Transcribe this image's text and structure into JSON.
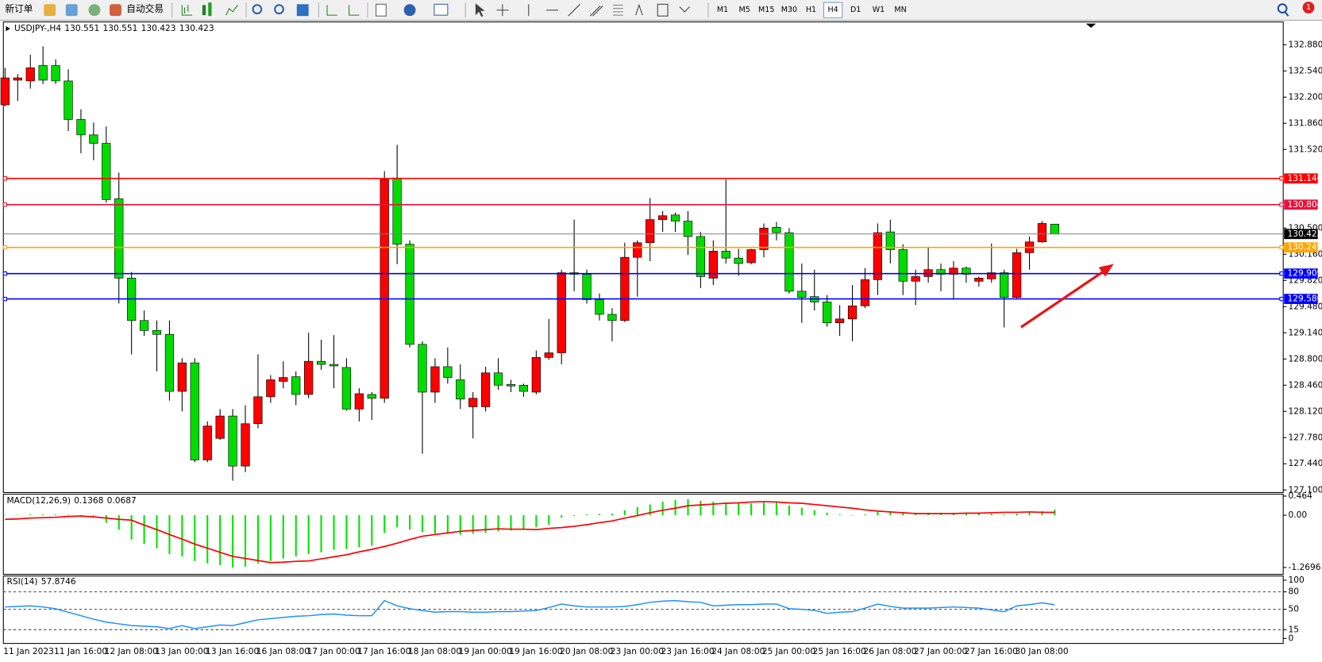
{
  "toolbar": {
    "new_order": "新订单",
    "auto_trading": "自动交易",
    "timeframes": [
      "M1",
      "M5",
      "M15",
      "M30",
      "H1",
      "H4",
      "D1",
      "W1",
      "MN"
    ],
    "notifications": 1
  },
  "chart_data": [
    {
      "type": "candlestick",
      "title": "USDJPY-,H4",
      "up_color": "#ff0000",
      "down_color": "#00dc00",
      "categories": [
        "11 Jan 2023",
        null,
        null,
        null,
        "11 Jan 16:00",
        null,
        null,
        null,
        "12 Jan 08:00",
        null,
        null,
        null,
        "13 Jan 00:00",
        null,
        null,
        null,
        "13 Jan 16:00",
        null,
        null,
        null,
        "16 Jan 08:00",
        null,
        null,
        null,
        "17 Jan 00:00",
        null,
        null,
        null,
        "17 Jan 16:00",
        null,
        null,
        null,
        "18 Jan 08:00",
        null,
        null,
        null,
        "19 Jan 00:00",
        null,
        null,
        null,
        "19 Jan 16:00",
        null,
        null,
        null,
        "20 Jan 08:00",
        null,
        null,
        null,
        "23 Jan 00:00",
        null,
        null,
        null,
        "23 Jan 16:00",
        null,
        null,
        null,
        "24 Jan 08:00",
        null,
        null,
        null,
        "25 Jan 00:00",
        null,
        null,
        null,
        "25 Jan 16:00",
        null,
        null,
        null,
        "26 Jan 08:00",
        null,
        null,
        null,
        "27 Jan 00:00",
        null,
        null,
        null,
        "27 Jan 16:00",
        null,
        null,
        null,
        "30 Jan 08:00",
        null,
        null,
        null
      ],
      "open": [
        132.1,
        132.42,
        132.41,
        132.61,
        132.61,
        132.41,
        131.91,
        131.71,
        131.6,
        130.88,
        129.85,
        129.3,
        129.17,
        129.12,
        128.38,
        128.75,
        127.49,
        127.77,
        128.06,
        127.41,
        127.96,
        128.31,
        128.51,
        128.57,
        128.34,
        128.77,
        128.73,
        128.69,
        128.15,
        128.34,
        128.29,
        131.15,
        130.29,
        128.99,
        128.37,
        128.7,
        128.53,
        128.18,
        128.18,
        128.62,
        128.47,
        128.46,
        128.37,
        128.82,
        128.88,
        129.92,
        129.9,
        129.57,
        129.38,
        129.3,
        130.12,
        130.31,
        130.61,
        130.67,
        130.59,
        130.39,
        129.85,
        130.2,
        130.11,
        130.05,
        130.22,
        130.51,
        130.44,
        129.68,
        129.61,
        129.54,
        129.27,
        129.32,
        129.49,
        129.83,
        130.45,
        130.22,
        129.81,
        129.87,
        129.96,
        129.9,
        129.98,
        129.81,
        129.84,
        129.92,
        129.6,
        130.18,
        130.32,
        130.551
      ],
      "high": [
        132.58,
        132.5,
        132.75,
        132.86,
        132.69,
        132.56,
        132.04,
        131.87,
        131.82,
        131.22,
        129.93,
        129.43,
        129.3,
        129.3,
        128.81,
        128.81,
        127.99,
        128.15,
        128.15,
        128.2,
        128.86,
        128.59,
        128.77,
        128.64,
        129.14,
        129.05,
        129.11,
        128.81,
        128.42,
        128.37,
        131.24,
        131.58,
        130.34,
        129.03,
        128.81,
        128.95,
        128.73,
        128.37,
        128.7,
        128.81,
        128.53,
        128.48,
        128.91,
        129.32,
        129.96,
        130.61,
        129.96,
        129.65,
        129.46,
        130.31,
        130.34,
        130.89,
        130.72,
        130.7,
        130.72,
        130.45,
        130.34,
        131.13,
        130.23,
        130.23,
        130.56,
        130.58,
        130.5,
        130.04,
        129.96,
        129.63,
        129.5,
        129.76,
        129.98,
        130.56,
        130.61,
        130.29,
        129.96,
        130.25,
        130.04,
        130.07,
        130.0,
        129.87,
        130.3,
        129.96,
        130.23,
        130.39,
        130.59,
        130.551
      ],
      "low": [
        132.08,
        132.15,
        132.31,
        132.37,
        132.37,
        131.76,
        131.47,
        131.38,
        130.83,
        129.52,
        128.86,
        129.1,
        128.64,
        128.26,
        128.12,
        127.46,
        127.46,
        127.75,
        127.22,
        127.33,
        127.9,
        128.23,
        128.42,
        128.2,
        128.29,
        128.66,
        128.42,
        128.13,
        127.99,
        128.01,
        128.23,
        130.03,
        128.95,
        127.57,
        128.23,
        128.48,
        128.15,
        127.77,
        128.12,
        128.4,
        128.37,
        128.31,
        128.34,
        128.79,
        128.73,
        129.68,
        129.52,
        129.3,
        129.03,
        129.28,
        129.61,
        130.07,
        130.45,
        130.45,
        130.15,
        129.72,
        129.76,
        130.04,
        129.88,
        130.03,
        130.12,
        130.34,
        129.65,
        129.27,
        129.43,
        129.22,
        129.1,
        129.03,
        129.46,
        129.63,
        130.04,
        129.63,
        129.5,
        129.79,
        129.68,
        129.57,
        129.79,
        129.74,
        129.79,
        129.21,
        129.58,
        129.96,
        130.31,
        130.423
      ],
      "close": [
        132.45,
        132.45,
        132.58,
        132.42,
        132.41,
        131.91,
        131.71,
        131.6,
        130.87,
        129.85,
        129.3,
        129.17,
        129.12,
        128.38,
        128.75,
        127.49,
        127.93,
        128.06,
        127.41,
        127.96,
        128.31,
        128.53,
        128.56,
        128.34,
        128.77,
        128.73,
        128.71,
        128.15,
        128.35,
        128.29,
        131.13,
        130.29,
        128.99,
        128.37,
        128.7,
        128.56,
        128.28,
        128.29,
        128.62,
        128.46,
        128.45,
        128.38,
        128.82,
        128.88,
        129.92,
        129.9,
        129.57,
        129.38,
        129.3,
        130.12,
        130.31,
        130.61,
        130.66,
        130.59,
        130.39,
        129.87,
        130.2,
        130.11,
        130.04,
        130.22,
        130.5,
        130.44,
        129.68,
        129.6,
        129.54,
        129.27,
        129.32,
        129.49,
        129.83,
        130.44,
        130.22,
        129.81,
        129.87,
        129.96,
        129.9,
        129.98,
        129.9,
        129.85,
        129.92,
        129.6,
        130.18,
        130.32,
        130.56,
        130.423
      ],
      "ylim": [
        127.078,
        133.165
      ],
      "yticks": [
        {
          "value": 132.88,
          "label": "132.880"
        },
        {
          "value": 132.54,
          "label": "132.540"
        },
        {
          "value": 132.2,
          "label": "132.200"
        },
        {
          "value": 131.86,
          "label": "131.860"
        },
        {
          "value": 131.52,
          "label": "131.520"
        },
        {
          "value": 130.5,
          "label": "130.500"
        },
        {
          "value": 130.16,
          "label": "130.160"
        },
        {
          "value": 129.82,
          "label": "129.820"
        },
        {
          "value": 129.48,
          "label": "129.480"
        },
        {
          "value": 129.14,
          "label": "129.140"
        },
        {
          "value": 128.8,
          "label": "128.800"
        },
        {
          "value": 128.46,
          "label": "128.460"
        },
        {
          "value": 128.12,
          "label": "128.120"
        },
        {
          "value": 127.78,
          "label": "127.780"
        },
        {
          "value": 127.44,
          "label": "127.440"
        },
        {
          "value": 127.1,
          "label": "127.100"
        }
      ],
      "hlines": [
        {
          "value": 131.144,
          "color": "#ff0000"
        },
        {
          "value": 130.804,
          "color": "#e8143c"
        },
        {
          "value": 130.249,
          "color": "#ffa500"
        },
        {
          "value": 129.909,
          "color": "#0000ff"
        },
        {
          "value": {
            "value": 129.58,
            "label": "129.580"
          },
          "color": "#0000ff"
        }
      ],
      "price_line_color": "#808080"
    },
    {
      "type": "macd",
      "title": "MACD(12,26,9)",
      "histogram": {
        "color": "#00e600",
        "values": [
          0.01,
          0.01,
          0.02,
          0.02,
          0.02,
          0.01,
          0,
          -0.02,
          -0.18,
          -0.35,
          -0.59,
          -0.7,
          -0.8,
          -0.94,
          -1.0,
          -1.11,
          -1.17,
          -1.21,
          -1.27,
          -1.25,
          -1.17,
          -1.11,
          -1.05,
          -1.0,
          -0.94,
          -0.9,
          -0.84,
          -0.82,
          -0.78,
          -0.74,
          -0.43,
          -0.29,
          -0.35,
          -0.41,
          -0.45,
          -0.45,
          -0.47,
          -0.45,
          -0.43,
          -0.39,
          -0.37,
          -0.35,
          -0.29,
          -0.23,
          -0.06,
          -0.02,
          0.02,
          0.03,
          0.04,
          0.12,
          0.2,
          0.26,
          0.33,
          0.37,
          0.39,
          0.35,
          0.33,
          0.31,
          0.29,
          0.29,
          0.31,
          0.31,
          0.24,
          0.18,
          0.12,
          0.06,
          0.02,
          0,
          0.02,
          0.08,
          0.1,
          0.08,
          0.06,
          0.06,
          0.06,
          0.06,
          0.06,
          0.04,
          0.04,
          0.02,
          0.04,
          0.06,
          0.1,
          0.1368
        ]
      },
      "signal": {
        "color": "#ff0000",
        "values": [
          -0.1,
          -0.09,
          -0.07,
          -0.06,
          -0.05,
          -0.03,
          -0.02,
          -0.04,
          -0.07,
          -0.1,
          -0.12,
          -0.24,
          -0.35,
          -0.47,
          -0.58,
          -0.7,
          -0.8,
          -0.9,
          -1.0,
          -1.05,
          -1.1,
          -1.15,
          -1.14,
          -1.12,
          -1.11,
          -1.06,
          -1.01,
          -0.96,
          -0.89,
          -0.83,
          -0.76,
          -0.68,
          -0.59,
          -0.51,
          -0.47,
          -0.43,
          -0.39,
          -0.37,
          -0.35,
          -0.33,
          -0.34,
          -0.34,
          -0.35,
          -0.32,
          -0.3,
          -0.27,
          -0.23,
          -0.18,
          -0.14,
          -0.07,
          -0.01,
          0.06,
          0.12,
          0.17,
          0.23,
          0.25,
          0.27,
          0.29,
          0.3,
          0.32,
          0.33,
          0.32,
          0.3,
          0.29,
          0.26,
          0.23,
          0.2,
          0.17,
          0.13,
          0.1,
          0.08,
          0.06,
          0.04,
          0.04,
          0.04,
          0.04,
          0.05,
          0.05,
          0.06,
          0.07,
          0.07,
          0.08,
          0.07,
          0.0687
        ]
      },
      "ylim": [
        -1.414,
        0.49
      ],
      "yticks": [
        0.464,
        {
          "value": 0,
          "label": "0.00"
        },
        -1.2696
      ]
    },
    {
      "type": "rsi",
      "title": "RSI(14)",
      "color": "#1e90ff",
      "values": [
        54,
        55,
        56,
        54,
        51,
        45,
        39,
        33,
        28,
        25,
        22,
        21,
        20,
        17,
        22,
        17,
        20,
        23,
        22,
        27,
        32,
        34,
        36,
        38,
        39,
        41,
        42,
        40,
        39,
        39,
        65,
        56,
        51,
        48,
        45,
        46,
        46,
        45,
        45,
        46,
        46,
        47,
        48,
        53,
        59,
        56,
        54,
        54,
        54,
        55,
        58,
        62,
        64,
        65,
        63,
        62,
        56,
        57,
        58,
        58,
        59,
        59,
        51,
        50,
        48,
        43,
        45,
        46,
        52,
        59,
        55,
        52,
        52,
        52,
        53,
        54,
        53,
        52,
        49,
        46,
        56,
        58,
        61,
        57.8746
      ],
      "ylim": [
        -7.2,
        105.8
      ],
      "yticks": [
        100,
        80,
        50,
        15,
        0
      ],
      "levels": [
        80,
        50,
        15
      ]
    }
  ]
}
